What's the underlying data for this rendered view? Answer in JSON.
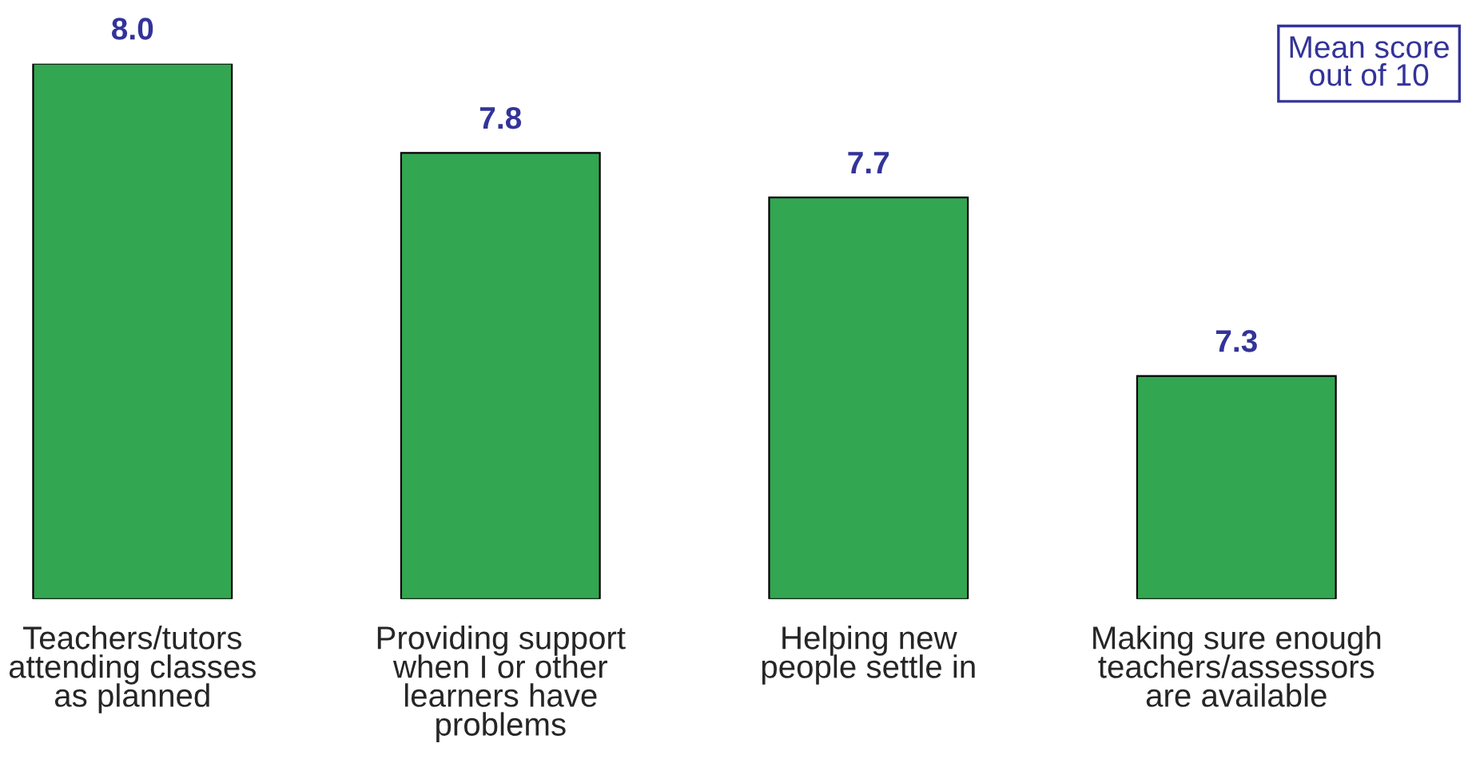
{
  "chart_data": {
    "type": "bar",
    "categories": [
      "Teachers/tutors\nattending classes\nas planned",
      "Providing support\nwhen I or other\nlearners have\nproblems",
      "Helping new\npeople settle in",
      "Making sure enough\nteachers/assessors\nare available"
    ],
    "values": [
      8.0,
      7.8,
      7.7,
      7.3
    ],
    "value_labels": [
      "8.0",
      "7.8",
      "7.7",
      "7.3"
    ],
    "color": "#33a652",
    "ylim": [
      6.8,
      8.0
    ],
    "annotations": [
      "Mean score\nout of 10"
    ],
    "grid": false,
    "legend": false
  }
}
